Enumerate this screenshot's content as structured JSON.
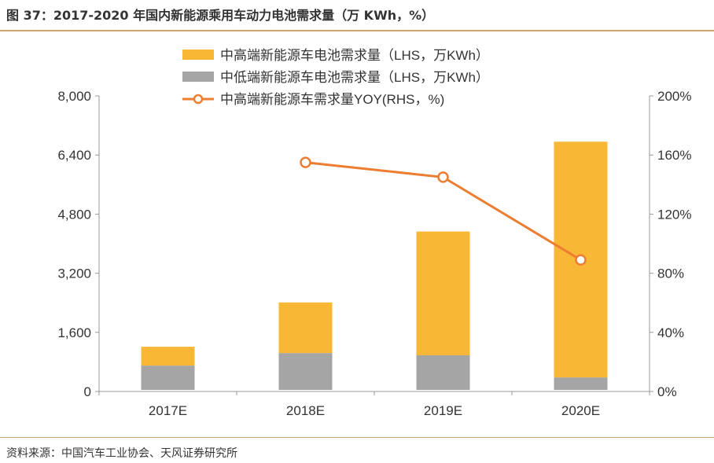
{
  "title": "图 37：2017-2020 年国内新能源乘用车动力电池需求量（万 KWh，%）",
  "source": "资料来源：中国汽车工业协会、天风证券研究所",
  "chart_data": {
    "type": "bar",
    "stacked": true,
    "categories": [
      "2017E",
      "2018E",
      "2019E",
      "2020E"
    ],
    "series": [
      {
        "name": "中低端新能源车电池需求量（LHS，万KWh）",
        "kind": "bar",
        "axis": "left",
        "color": "#a5a5a5",
        "values": [
          700,
          1040,
          980,
          380
        ]
      },
      {
        "name": "中高端新能源车电池需求量（LHS，万KWh）",
        "kind": "bar",
        "axis": "left",
        "color": "#f8b735",
        "values": [
          510,
          1370,
          3350,
          6380
        ]
      },
      {
        "name": "中高端新能源车需求量YOY(RHS，%)",
        "kind": "line",
        "axis": "right",
        "color": "#ed7d31",
        "values": [
          null,
          155,
          145,
          89
        ]
      }
    ],
    "legend_order": [
      1,
      0,
      2
    ],
    "legend_position": "top",
    "ylim": [
      0,
      8000
    ],
    "yticks": [
      "0",
      "1,600",
      "3,200",
      "4,800",
      "6,400",
      "8,000"
    ],
    "ytick_values": [
      0,
      1600,
      3200,
      4800,
      6400,
      8000
    ],
    "y2lim": [
      0,
      200
    ],
    "y2ticks": [
      "0%",
      "40%",
      "80%",
      "120%",
      "160%",
      "200%"
    ],
    "y2tick_values": [
      0,
      40,
      80,
      120,
      160,
      200
    ],
    "grid": false
  }
}
